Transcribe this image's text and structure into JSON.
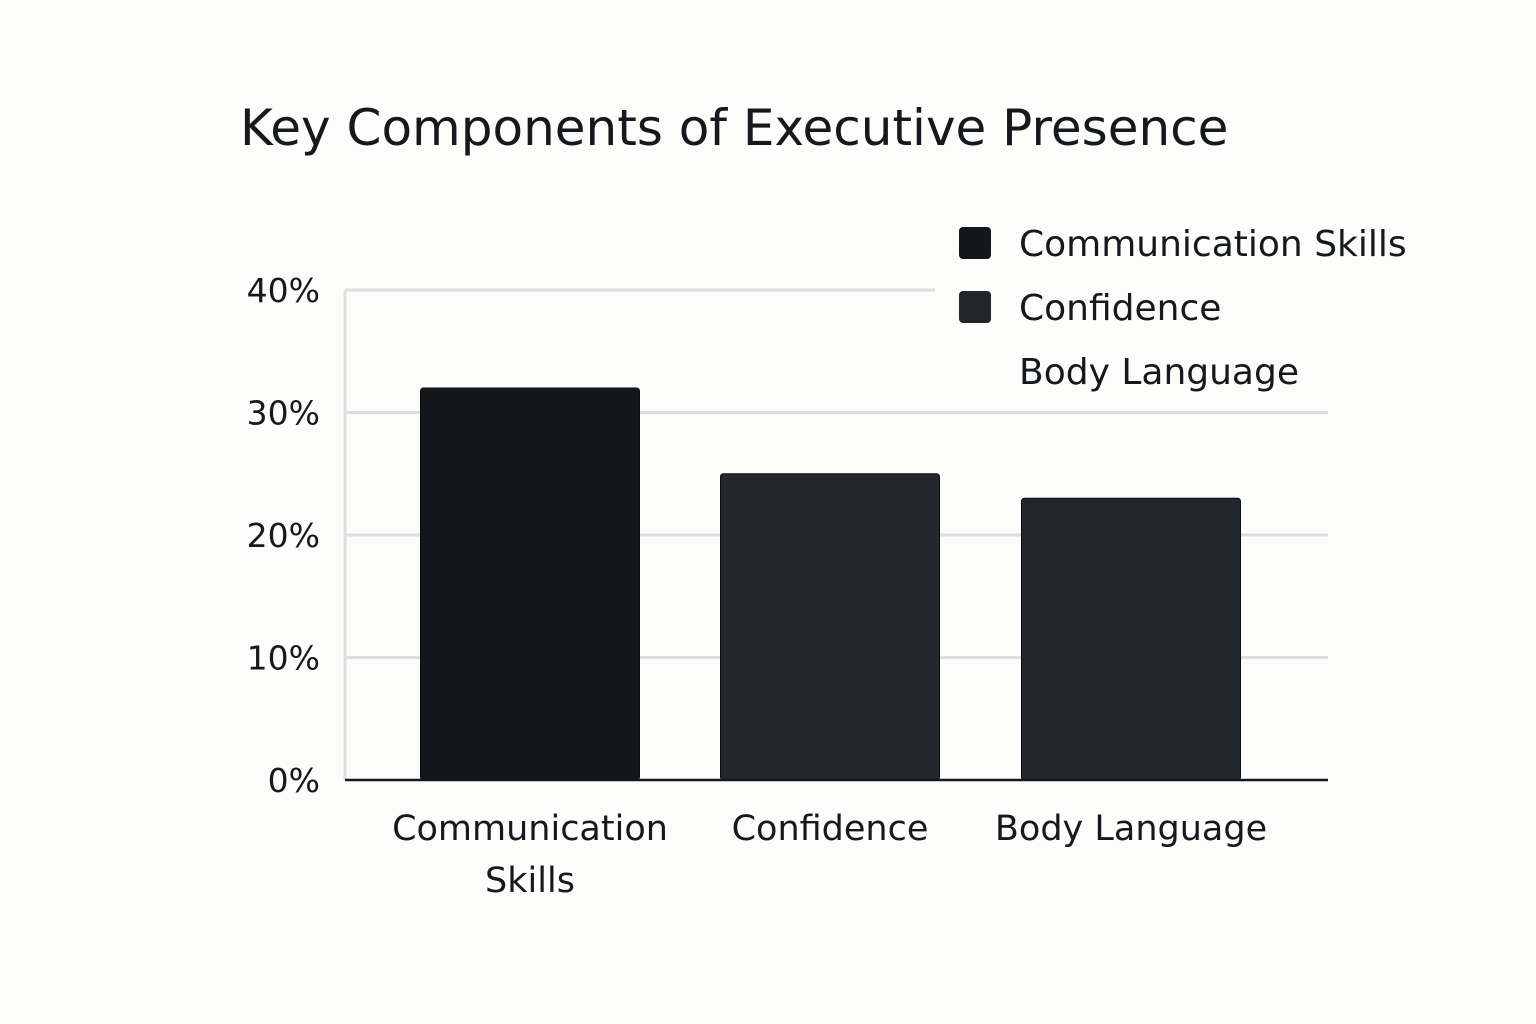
{
  "chart_data": {
    "type": "bar",
    "title": "Key Components of Executive Presence",
    "categories": [
      "Communication Skills",
      "Confidence",
      "Body Language"
    ],
    "category_label_lines": [
      [
        "Communication",
        "Skills"
      ],
      [
        "Confidence"
      ],
      [
        "Body Language"
      ]
    ],
    "values": [
      32,
      25,
      23
    ],
    "unit": "%",
    "ylim": [
      0,
      40
    ],
    "yticks": [
      0,
      10,
      20,
      30,
      40
    ],
    "ytick_labels": [
      "0%",
      "10%",
      "20%",
      "30%",
      "40%"
    ],
    "xlabel": "",
    "ylabel": "",
    "grid": true,
    "legend_position": "top-right",
    "legend": [
      {
        "label": "Communication Skills",
        "color": "#13171b",
        "swatch": true
      },
      {
        "label": "Confidence",
        "color": "#23272d",
        "swatch": true
      },
      {
        "label": "Body Language",
        "color": "#23272d",
        "swatch": false
      }
    ],
    "bar_colors": [
      "#13171b",
      "#23272d",
      "#23272d"
    ]
  }
}
